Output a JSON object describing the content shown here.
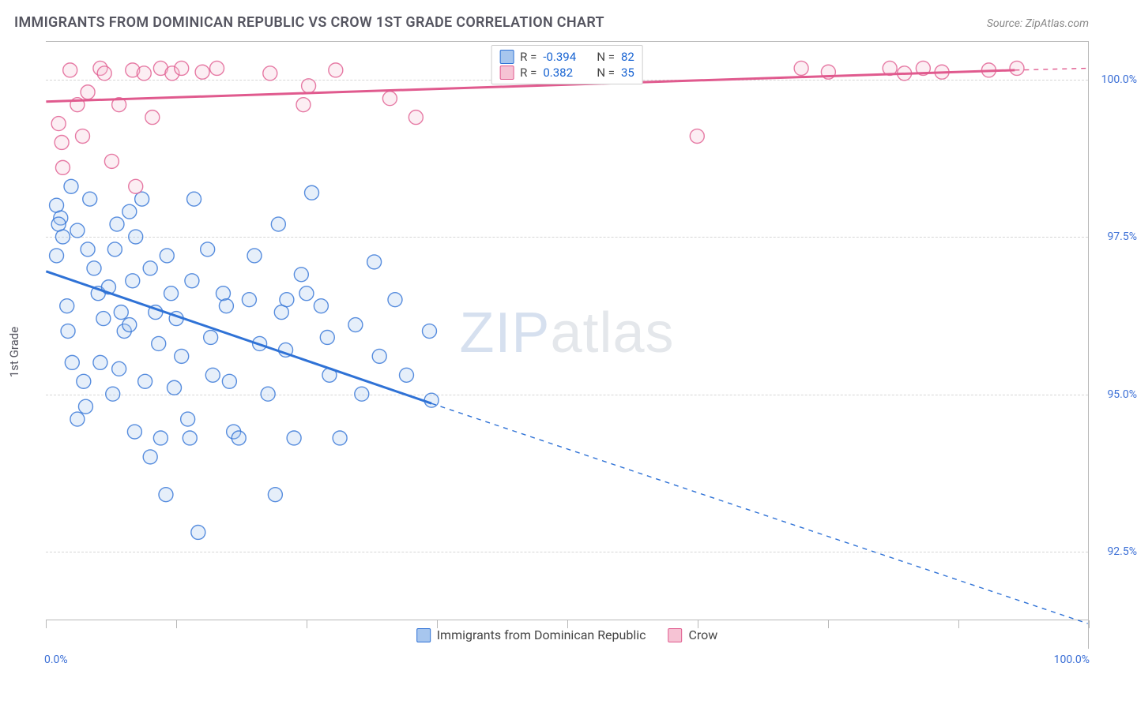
{
  "title": "IMMIGRANTS FROM DOMINICAN REPUBLIC VS CROW 1ST GRADE CORRELATION CHART",
  "source_label": "Source:",
  "source_value": "ZipAtlas.com",
  "watermark_a": "ZIP",
  "watermark_b": "atlas",
  "y_axis_label": "1st Grade",
  "chart": {
    "type": "scatter",
    "background_color": "#ffffff",
    "grid_color": "#d6d6d6",
    "axis_color": "#b8b8b8",
    "tick_label_color": "#3b6fd6",
    "tick_fontsize": 14,
    "xlim": [
      0,
      100
    ],
    "ylim": [
      91.4,
      100.6
    ],
    "x_tick_positions": [
      0,
      12.5,
      25,
      37.5,
      50,
      62.5,
      75,
      87.5,
      100
    ],
    "x_tick_labels_shown": {
      "0": "0.0%",
      "100": "100.0%"
    },
    "y_ticks": [
      92.5,
      95.0,
      97.5,
      100.0
    ],
    "y_tick_labels": [
      "92.5%",
      "95.0%",
      "97.5%",
      "100.0%"
    ],
    "marker_radius": 9,
    "marker_fill_opacity": 0.28,
    "marker_stroke_opacity": 0.8,
    "marker_stroke_width": 1.4,
    "line_width_solid": 3,
    "line_width_dashed": 1.4,
    "dash_pattern": "6,6"
  },
  "legend_top": [
    {
      "swatch_fill": "#a7c6ee",
      "swatch_stroke": "#2f72d6",
      "r_label": "R =",
      "r_value": "-0.394",
      "n_label": "N =",
      "n_value": "82"
    },
    {
      "swatch_fill": "#f6c3d4",
      "swatch_stroke": "#e05a8e",
      "r_label": "R =",
      "r_value": "0.382",
      "n_label": "N =",
      "n_value": "35"
    }
  ],
  "legend_bottom": [
    {
      "swatch_fill": "#a7c6ee",
      "swatch_stroke": "#2f72d6",
      "label": "Immigrants from Dominican Republic"
    },
    {
      "swatch_fill": "#f6c3d4",
      "swatch_stroke": "#e05a8e",
      "label": "Crow"
    }
  ],
  "series": [
    {
      "name": "Immigrants from Dominican Republic",
      "color_stroke": "#2f72d6",
      "color_fill": "#a7c6ee",
      "trend": {
        "x1": 0,
        "y1": 96.95,
        "x2": 37,
        "y2": 94.85,
        "x3": 100,
        "y3": 91.35
      },
      "points": [
        [
          1.0,
          98.0
        ],
        [
          1.4,
          97.8
        ],
        [
          1.2,
          97.7
        ],
        [
          1.6,
          97.5
        ],
        [
          1.0,
          97.2
        ],
        [
          2.4,
          98.3
        ],
        [
          3.0,
          97.6
        ],
        [
          2.0,
          96.4
        ],
        [
          2.1,
          96.0
        ],
        [
          2.5,
          95.5
        ],
        [
          3.0,
          94.6
        ],
        [
          4.2,
          98.1
        ],
        [
          4.0,
          97.3
        ],
        [
          4.6,
          97.0
        ],
        [
          5.0,
          96.6
        ],
        [
          5.5,
          96.2
        ],
        [
          5.2,
          95.5
        ],
        [
          3.6,
          95.2
        ],
        [
          3.8,
          94.8
        ],
        [
          6.8,
          97.7
        ],
        [
          6.6,
          97.3
        ],
        [
          6.0,
          96.7
        ],
        [
          7.2,
          96.3
        ],
        [
          7.5,
          96.0
        ],
        [
          8.0,
          97.9
        ],
        [
          8.6,
          97.5
        ],
        [
          8.3,
          96.8
        ],
        [
          8.0,
          96.1
        ],
        [
          7.0,
          95.4
        ],
        [
          6.4,
          95.0
        ],
        [
          9.2,
          98.1
        ],
        [
          10.0,
          97.0
        ],
        [
          10.5,
          96.3
        ],
        [
          10.8,
          95.8
        ],
        [
          9.5,
          95.2
        ],
        [
          8.5,
          94.4
        ],
        [
          11.6,
          97.2
        ],
        [
          12.0,
          96.6
        ],
        [
          12.5,
          96.2
        ],
        [
          13.0,
          95.6
        ],
        [
          12.3,
          95.1
        ],
        [
          11.0,
          94.3
        ],
        [
          10.0,
          94.0
        ],
        [
          11.5,
          93.4
        ],
        [
          14.2,
          98.1
        ],
        [
          14.0,
          96.8
        ],
        [
          13.6,
          94.6
        ],
        [
          13.8,
          94.3
        ],
        [
          14.6,
          92.8
        ],
        [
          15.5,
          97.3
        ],
        [
          15.8,
          95.9
        ],
        [
          16.0,
          95.3
        ],
        [
          17.0,
          96.6
        ],
        [
          17.3,
          96.4
        ],
        [
          17.6,
          95.2
        ],
        [
          18.0,
          94.4
        ],
        [
          18.5,
          94.3
        ],
        [
          20.0,
          97.2
        ],
        [
          19.5,
          96.5
        ],
        [
          20.5,
          95.8
        ],
        [
          21.3,
          95.0
        ],
        [
          22.0,
          93.4
        ],
        [
          22.3,
          97.7
        ],
        [
          22.6,
          96.3
        ],
        [
          23.0,
          95.7
        ],
        [
          23.1,
          96.5
        ],
        [
          23.8,
          94.3
        ],
        [
          25.5,
          98.2
        ],
        [
          25.0,
          96.6
        ],
        [
          24.5,
          96.9
        ],
        [
          26.4,
          96.4
        ],
        [
          27.0,
          95.9
        ],
        [
          27.2,
          95.3
        ],
        [
          28.2,
          94.3
        ],
        [
          29.7,
          96.1
        ],
        [
          30.3,
          95.0
        ],
        [
          31.5,
          97.1
        ],
        [
          32.0,
          95.6
        ],
        [
          33.5,
          96.5
        ],
        [
          34.6,
          95.3
        ],
        [
          36.8,
          96.0
        ],
        [
          37.0,
          94.9
        ]
      ]
    },
    {
      "name": "Crow",
      "color_stroke": "#e05a8e",
      "color_fill": "#f6c3d4",
      "trend": {
        "x1": 0,
        "y1": 99.65,
        "x2": 93,
        "y2": 100.15,
        "x3": 100,
        "y3": 100.18
      },
      "points": [
        [
          1.2,
          99.3
        ],
        [
          1.5,
          99.0
        ],
        [
          1.6,
          98.6
        ],
        [
          2.3,
          100.15
        ],
        [
          3.0,
          99.6
        ],
        [
          3.5,
          99.1
        ],
        [
          4.0,
          99.8
        ],
        [
          5.2,
          100.18
        ],
        [
          5.6,
          100.1
        ],
        [
          6.3,
          98.7
        ],
        [
          7.0,
          99.6
        ],
        [
          8.3,
          100.15
        ],
        [
          8.6,
          98.3
        ],
        [
          9.4,
          100.1
        ],
        [
          10.2,
          99.4
        ],
        [
          11.0,
          100.18
        ],
        [
          12.1,
          100.1
        ],
        [
          13.0,
          100.18
        ],
        [
          15.0,
          100.12
        ],
        [
          16.4,
          100.18
        ],
        [
          21.5,
          100.1
        ],
        [
          24.7,
          99.6
        ],
        [
          25.2,
          99.9
        ],
        [
          27.8,
          100.15
        ],
        [
          33.0,
          99.7
        ],
        [
          35.5,
          99.4
        ],
        [
          62.5,
          99.1
        ],
        [
          72.5,
          100.18
        ],
        [
          75.1,
          100.12
        ],
        [
          81.0,
          100.18
        ],
        [
          82.4,
          100.1
        ],
        [
          84.2,
          100.18
        ],
        [
          86.0,
          100.12
        ],
        [
          90.5,
          100.15
        ],
        [
          93.2,
          100.18
        ]
      ]
    }
  ]
}
